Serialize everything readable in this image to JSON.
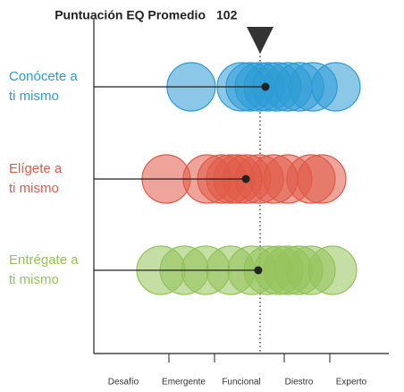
{
  "chart_data": {
    "type": "strip",
    "title": "Puntuación EQ Promedio",
    "average": 102,
    "xlim": [
      40,
      150
    ],
    "xticks": [
      68,
      85,
      111,
      128
    ],
    "categories": [
      "Desafío",
      "Emergente",
      "Funcional",
      "Diestro",
      "Experto"
    ],
    "series": [
      {
        "name_lines": [
          "Conócete a",
          "ti mismo"
        ],
        "color": "#2b9bd6",
        "mean": 104,
        "values": [
          76.3,
          95,
          98.3,
          101.7,
          105,
          108.3,
          112.3,
          116.7,
          121.7,
          130.3
        ]
      },
      {
        "name_lines": [
          "Elígete a",
          "ti mismo"
        ],
        "color": "#e05a47",
        "mean": 96.7,
        "values": [
          67,
          82.3,
          87.7,
          91,
          93.7,
          97,
          101.7,
          107,
          112.3,
          121,
          125
        ]
      },
      {
        "name_lines": [
          "Entrégate a",
          "ti mismo"
        ],
        "color": "#93c35a",
        "mean": 101.3,
        "values": [
          65,
          73.7,
          81.7,
          91,
          99,
          105,
          109,
          112.3,
          116.3,
          121,
          129
        ]
      }
    ]
  }
}
